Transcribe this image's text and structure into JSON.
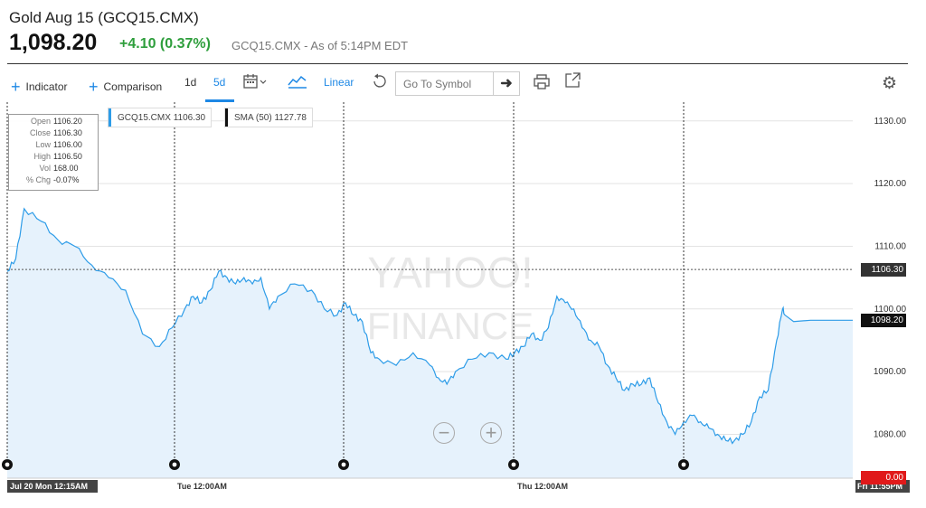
{
  "header": {
    "title": "Gold Aug 15 (GCQ15.CMX)",
    "price": "1,098.20",
    "change": "+4.10 (0.37%)",
    "as_of": "GCQ15.CMX - As of 5:14PM EDT"
  },
  "toolbar": {
    "indicator": "Indicator",
    "comparison": "Comparison",
    "range_1d": "1d",
    "range_5d": "5d",
    "scale": "Linear",
    "goto_placeholder": "Go To Symbol"
  },
  "info": {
    "rows": [
      {
        "k": "Open",
        "v": "1106.20"
      },
      {
        "k": "Close",
        "v": "1106.30"
      },
      {
        "k": "Low",
        "v": "1106.00"
      },
      {
        "k": "High",
        "v": "1106.50"
      },
      {
        "k": "Vol",
        "v": "168.00"
      },
      {
        "k": "% Chg",
        "v": "-0.07%"
      }
    ]
  },
  "legend": {
    "series": "GCQ15.CMX",
    "series_value": "1106.30",
    "sma": "SMA (50)",
    "sma_value": "1127.78",
    "series_color": "#2d9ce8",
    "sma_color": "#111111"
  },
  "watermark": {
    "line1": "YAHOO!",
    "line2": "FINANCE"
  },
  "tags": {
    "crosshair_price": "1106.30",
    "last_price": "1098.20",
    "volume_zero": "0.00"
  },
  "chart_data": {
    "type": "area",
    "ylim": [
      1073,
      1133
    ],
    "yticks": [
      1080,
      1090,
      1100,
      1110,
      1120,
      1130
    ],
    "ytick_labels": [
      "1080.00",
      "1090.00",
      "1100.00",
      "1110.00",
      "1120.00",
      "1130.00"
    ],
    "xlabels": [
      "Jul 20 Mon 12:15AM",
      "Tue 12:00AM",
      "Thu 12:00AM",
      "Fri 11:55PM"
    ],
    "crosshair_label": "Jul 20 Mon 12:15AM",
    "crosshair_value": 1106.3,
    "last_value": 1098.2,
    "grid": true,
    "series": [
      {
        "color": "#2d9ce8",
        "x": [
          0,
          1,
          2,
          4,
          6,
          8,
          10,
          12,
          14,
          16,
          18,
          19.5,
          21,
          22,
          23,
          24,
          25,
          26,
          27,
          28,
          29,
          30,
          31,
          32,
          34,
          36,
          37.5,
          39,
          40,
          41,
          42,
          43,
          44,
          46,
          48,
          50,
          51,
          52,
          53,
          55,
          57,
          59,
          60,
          61,
          62,
          63,
          64,
          65,
          66,
          67,
          68,
          69,
          70,
          71,
          72,
          73,
          74,
          75,
          76,
          77,
          78,
          79,
          80,
          81,
          82,
          83,
          84,
          85,
          86,
          87,
          88,
          89,
          90,
          91,
          91.7,
          92,
          93,
          95,
          97,
          99,
          100
        ],
        "y": [
          1106,
          1108,
          1116,
          1114,
          1111,
          1110,
          1107,
          1105,
          1103,
          1096,
          1094,
          1097,
          1100,
          1102,
          1101,
          1103,
          1106,
          1105,
          1104,
          1105,
          1104,
          1105,
          1100,
          1102,
          1104,
          1103,
          1100,
          1099,
          1101,
          1099,
          1098,
          1093,
          1092,
          1091,
          1093,
          1091,
          1089,
          1088,
          1090,
          1092,
          1093,
          1092,
          1093,
          1094,
          1096,
          1095,
          1097,
          1102,
          1101,
          1100,
          1097,
          1095,
          1094,
          1091,
          1089,
          1087,
          1088,
          1088,
          1089,
          1085,
          1082,
          1080,
          1082,
          1083,
          1082,
          1081,
          1080,
          1079,
          1079,
          1080,
          1082,
          1086,
          1087,
          1095,
          1100,
          1099,
          1098,
          1098.2,
          1098.2,
          1098.2,
          1098.2
        ]
      }
    ]
  }
}
